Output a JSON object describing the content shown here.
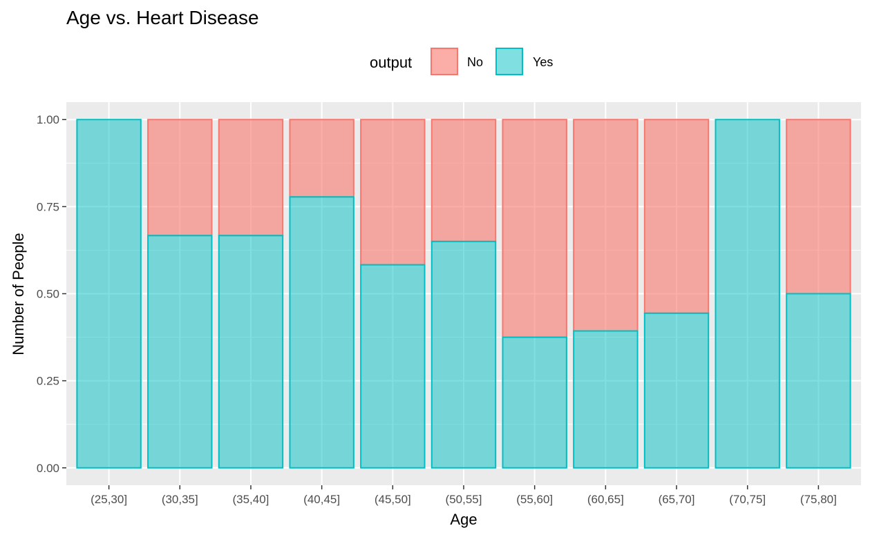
{
  "chart_data": {
    "type": "bar",
    "stacked": true,
    "title": "Age vs. Heart Disease",
    "xlabel": "Age",
    "ylabel": "Number of People",
    "categories": [
      "(25,30]",
      "(30,35]",
      "(35,40]",
      "(40,45]",
      "(45,50]",
      "(50,55]",
      "(55,60]",
      "(60,65]",
      "(65,70]",
      "(70,75]",
      "(75,80]"
    ],
    "series": [
      {
        "name": "No",
        "values": [
          0.0,
          0.333,
          0.333,
          0.222,
          0.417,
          0.35,
          0.625,
          0.607,
          0.556,
          0.0,
          0.5
        ]
      },
      {
        "name": "Yes",
        "values": [
          1.0,
          0.667,
          0.667,
          0.778,
          0.583,
          0.65,
          0.375,
          0.393,
          0.444,
          1.0,
          0.5
        ]
      }
    ],
    "ylim": [
      -0.05,
      1.05
    ],
    "yticks": [
      0.0,
      0.25,
      0.5,
      0.75,
      1.0
    ],
    "ytick_labels": [
      "0.00",
      "0.25",
      "0.50",
      "0.75",
      "1.00"
    ],
    "grid": true,
    "legend": {
      "title": "output",
      "placement": "top",
      "entries": [
        "No",
        "Yes"
      ]
    },
    "colors": {
      "No": {
        "fill": "#F8766D",
        "stroke": "#F8766D"
      },
      "Yes": {
        "fill": "#00BFC4",
        "stroke": "#00BFC4"
      },
      "panel_background": "#EBEBEB",
      "grid": "#FFFFFF"
    }
  }
}
